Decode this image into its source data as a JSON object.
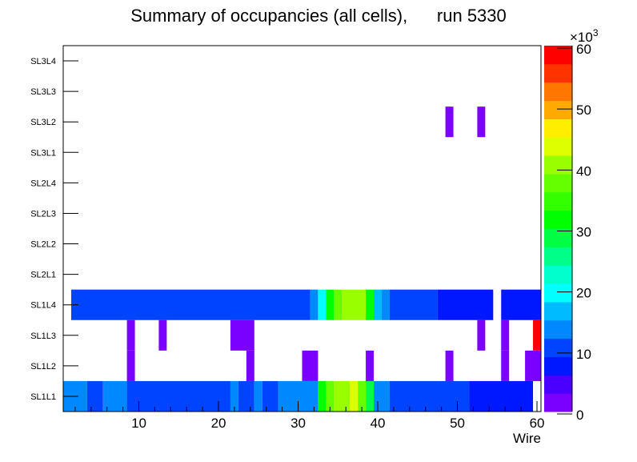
{
  "chart_data": {
    "type": "heatmap",
    "title": "Summary of occupancies (all cells),      run 5330",
    "xlabel": "Wire",
    "ylabel": "",
    "xlim": [
      0.5,
      60.5
    ],
    "x_ticks": [
      "10",
      "20",
      "30",
      "40",
      "50",
      "60"
    ],
    "x_tick_values": [
      10,
      20,
      30,
      40,
      50,
      60
    ],
    "y_categories": [
      "SL1L1",
      "SL1L2",
      "SL1L3",
      "SL1L4",
      "SL2L1",
      "SL2L2",
      "SL2L3",
      "SL2L4",
      "SL3L1",
      "SL3L2",
      "SL3L3",
      "SL3L4"
    ],
    "z_range": [
      0,
      60
    ],
    "z_levels": 20,
    "z_multiplier": "×10",
    "z_exponent": "3",
    "z_ticks": [
      "0",
      "10",
      "20",
      "30",
      "40",
      "50",
      "60"
    ],
    "z_tick_values": [
      0,
      10,
      20,
      30,
      40,
      50,
      60
    ],
    "palette": [
      "#7a00ff",
      "#4a00ff",
      "#0018ff",
      "#0044ff",
      "#0088ff",
      "#00bbff",
      "#00ffff",
      "#00ffcc",
      "#00ff88",
      "#00ff44",
      "#00ff00",
      "#33ff00",
      "#66ff00",
      "#99ff00",
      "#ddff00",
      "#ffee00",
      "#ffaa00",
      "#ff7700",
      "#ff3300",
      "#ff0000"
    ],
    "cells_note_units": "thousands of hits; each segment = [first wire, last wire, value]",
    "rows": {
      "SL1L1": [
        [
          1,
          3,
          13.5
        ],
        [
          4,
          5,
          10.5
        ],
        [
          6,
          8,
          13.5
        ],
        [
          9,
          21,
          10.5
        ],
        [
          22,
          22,
          13.5
        ],
        [
          23,
          24,
          10.5
        ],
        [
          25,
          25,
          13.5
        ],
        [
          26,
          27,
          10.5
        ],
        [
          28,
          32,
          13.5
        ],
        [
          33,
          33,
          31.5
        ],
        [
          34,
          34,
          37.5
        ],
        [
          35,
          36,
          40.5
        ],
        [
          37,
          37,
          43.5
        ],
        [
          38,
          38,
          37.5
        ],
        [
          39,
          39,
          28.5
        ],
        [
          40,
          41,
          13.5
        ],
        [
          42,
          51,
          10.5
        ],
        [
          52,
          59,
          7.5
        ]
      ],
      "SL1L2": [
        [
          9,
          9,
          1.5
        ],
        [
          24,
          24,
          1.5
        ],
        [
          31,
          32,
          1.5
        ],
        [
          39,
          39,
          1.5
        ],
        [
          49,
          49,
          1.5
        ],
        [
          56,
          56,
          1.5
        ],
        [
          59,
          60,
          1.5
        ]
      ],
      "SL1L3": [
        [
          9,
          9,
          1.5
        ],
        [
          13,
          13,
          1.5
        ],
        [
          22,
          24,
          1.5
        ],
        [
          53,
          53,
          1.5
        ],
        [
          56,
          56,
          1.5
        ],
        [
          60,
          60,
          58.5
        ]
      ],
      "SL1L4": [
        [
          2,
          31,
          10.5
        ],
        [
          32,
          32,
          13.5
        ],
        [
          33,
          33,
          19.5
        ],
        [
          34,
          34,
          31.5
        ],
        [
          35,
          35,
          37.5
        ],
        [
          36,
          38,
          40.5
        ],
        [
          39,
          39,
          31.5
        ],
        [
          40,
          40,
          16.5
        ],
        [
          41,
          41,
          13.5
        ],
        [
          42,
          47,
          10.5
        ],
        [
          48,
          54,
          7.5
        ],
        [
          56,
          60,
          7.5
        ]
      ],
      "SL2L1": [],
      "SL2L2": [],
      "SL2L3": [],
      "SL2L4": [],
      "SL3L1": [],
      "SL3L2": [
        [
          49,
          49,
          1.5
        ],
        [
          53,
          53,
          1.5
        ]
      ],
      "SL3L3": [],
      "SL3L4": []
    }
  }
}
